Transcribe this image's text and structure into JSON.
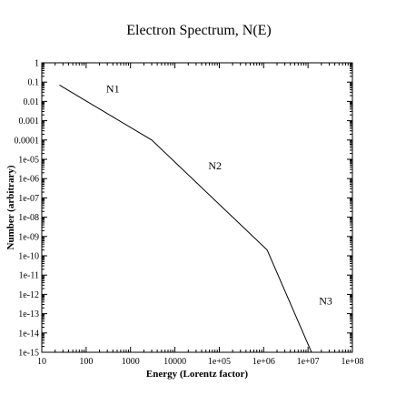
{
  "chart_data": {
    "type": "line",
    "title": "Electron Spectrum, N(E)",
    "xlabel": "Energy (Lorentz factor)",
    "ylabel": "Number (arbitrary)",
    "x_scale": "log",
    "y_scale": "log",
    "xlim": [
      10,
      100000000
    ],
    "ylim": [
      1e-15,
      1
    ],
    "grid": false,
    "x_ticks": [
      {
        "value": 10,
        "label": "10"
      },
      {
        "value": 100,
        "label": "100"
      },
      {
        "value": 1000,
        "label": "1000"
      },
      {
        "value": 10000,
        "label": "10000"
      },
      {
        "value": 100000,
        "label": "1e+05"
      },
      {
        "value": 1000000,
        "label": "1e+06"
      },
      {
        "value": 10000000,
        "label": "1e+07"
      },
      {
        "value": 100000000,
        "label": "1e+08"
      }
    ],
    "y_ticks": [
      {
        "value": 1,
        "label": "1"
      },
      {
        "value": 0.1,
        "label": "0.1"
      },
      {
        "value": 0.01,
        "label": "0.01"
      },
      {
        "value": 0.001,
        "label": "0.001"
      },
      {
        "value": 0.0001,
        "label": "0.0001"
      },
      {
        "value": 1e-05,
        "label": "1e-05"
      },
      {
        "value": 1e-06,
        "label": "1e-06"
      },
      {
        "value": 1e-07,
        "label": "1e-07"
      },
      {
        "value": 1e-08,
        "label": "1e-08"
      },
      {
        "value": 1e-09,
        "label": "1e-09"
      },
      {
        "value": 1e-10,
        "label": "1e-10"
      },
      {
        "value": 1e-11,
        "label": "1e-11"
      },
      {
        "value": 1e-12,
        "label": "1e-12"
      },
      {
        "value": 1e-13,
        "label": "1e-13"
      },
      {
        "value": 1e-14,
        "label": "1e-14"
      },
      {
        "value": 1e-15,
        "label": "1e-15"
      }
    ],
    "series": [
      {
        "points": [
          {
            "x": 25,
            "y": 0.07
          },
          {
            "x": 3000,
            "y": 0.0001
          },
          {
            "x": 1200000,
            "y": 2e-10
          },
          {
            "x": 12000000,
            "y": 1e-15
          }
        ]
      }
    ],
    "annotations": [
      {
        "text": "N1",
        "x": 400,
        "y": 0.03
      },
      {
        "text": "N2",
        "x": 80000,
        "y": 3e-06
      },
      {
        "text": "N3",
        "x": 25000000,
        "y": 3e-13
      }
    ],
    "colors": {
      "line": "#000000",
      "axes": "#000000",
      "background": "#ffffff"
    }
  }
}
